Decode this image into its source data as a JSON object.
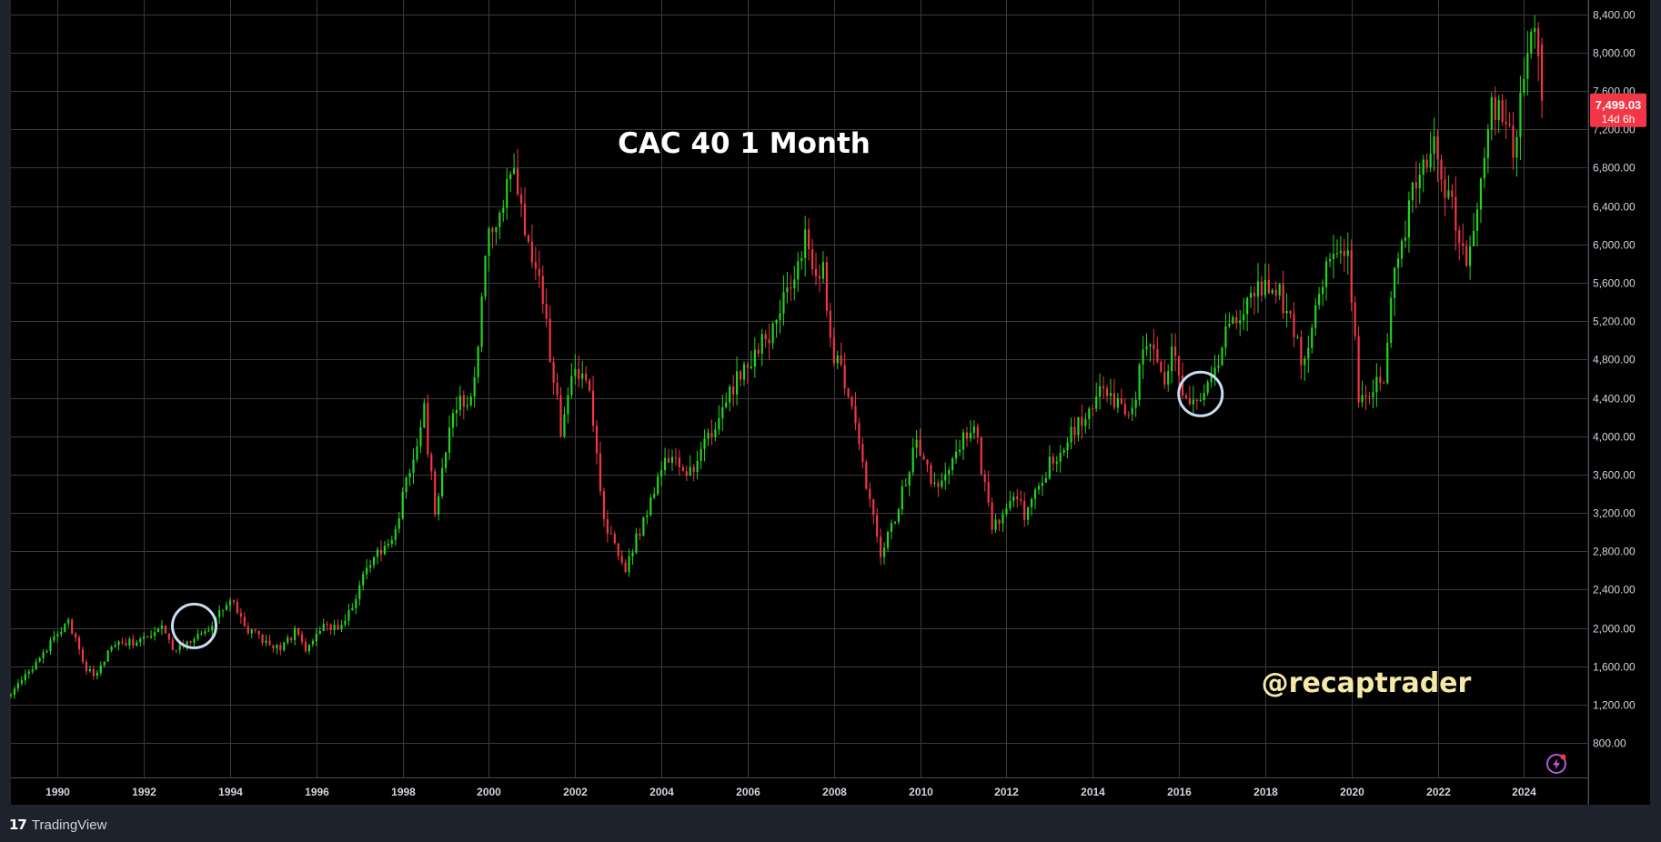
{
  "chart_data": {
    "type": "candlestick",
    "title": "CAC 40 1 Month",
    "annotation": "@recaptrader",
    "x_axis": {
      "type": "date",
      "xlim": [
        "1988-12-01",
        "2025-06-20"
      ],
      "tick_labels": [
        "1990",
        "1992",
        "1994",
        "1996",
        "1998",
        "2000",
        "2002",
        "2004",
        "2006",
        "2008",
        "2010",
        "2012",
        "2014",
        "2016",
        "2018",
        "2020",
        "2022",
        "2024"
      ]
    },
    "y_axis": {
      "ylim": [
        440,
        8550
      ],
      "position": "right",
      "tick_labels": [
        "800.00",
        "1,200.00",
        "1,600.00",
        "2,000.00",
        "2,400.00",
        "2,800.00",
        "3,200.00",
        "3,600.00",
        "4,000.00",
        "4,400.00",
        "4,800.00",
        "5,200.00",
        "5,600.00",
        "6,000.00",
        "6,400.00",
        "6,800.00",
        "7,200.00",
        "7,600.00",
        "8,000.00",
        "8,400.00"
      ]
    },
    "grid": true,
    "colors": {
      "background": "#000000",
      "up": "#22d61f",
      "down": "#f23645",
      "grid": "#3a3a3a",
      "axis_text": "#d1d4dc",
      "title": "#ffffff",
      "annotation": "#f5e9a6",
      "circle": "#c8dcf2",
      "last_price_bg": "#f23645"
    },
    "last_price": {
      "value": 7499.03,
      "label": "7,499.03",
      "countdown": "14d 6h"
    },
    "highlights": [
      {
        "date": "1993-03-01",
        "price": 2020
      },
      {
        "date": "2016-07-01",
        "price": 4440
      }
    ],
    "anchors": [
      [
        "1988-12",
        1300
      ],
      [
        "1989-07",
        1650
      ],
      [
        "1990-04",
        2090
      ],
      [
        "1990-09",
        1560
      ],
      [
        "1990-12",
        1520
      ],
      [
        "1991-04",
        1820
      ],
      [
        "1992-01",
        1870
      ],
      [
        "1992-06",
        2060
      ],
      [
        "1992-09",
        1730
      ],
      [
        "1993-03",
        1880
      ],
      [
        "1993-06",
        1950
      ],
      [
        "1994-01",
        2330
      ],
      [
        "1994-06",
        1980
      ],
      [
        "1995-03",
        1780
      ],
      [
        "1995-07",
        1960
      ],
      [
        "1995-10",
        1790
      ],
      [
        "1996-03",
        2020
      ],
      [
        "1996-07",
        1990
      ],
      [
        "1996-12",
        2320
      ],
      [
        "1997-05",
        2780
      ],
      [
        "1997-10",
        2900
      ],
      [
        "1998-07",
        4250
      ],
      [
        "1998-10",
        3200
      ],
      [
        "1999-03",
        4200
      ],
      [
        "1999-09",
        4550
      ],
      [
        "1999-12",
        5960
      ],
      [
        "2000-08",
        6800
      ],
      [
        "2000-12",
        5920
      ],
      [
        "2001-03",
        5600
      ],
      [
        "2001-09",
        4100
      ],
      [
        "2001-12",
        4630
      ],
      [
        "2002-05",
        4550
      ],
      [
        "2002-09",
        3150
      ],
      [
        "2003-03",
        2600
      ],
      [
        "2003-12",
        3560
      ],
      [
        "2004-03",
        3750
      ],
      [
        "2004-09",
        3640
      ],
      [
        "2005-03",
        4060
      ],
      [
        "2005-12",
        4710
      ],
      [
        "2006-05",
        5050
      ],
      [
        "2006-06",
        4900
      ],
      [
        "2006-12",
        5540
      ],
      [
        "2007-05",
        6090
      ],
      [
        "2007-08",
        5660
      ],
      [
        "2007-10",
        5700
      ],
      [
        "2008-01",
        4870
      ],
      [
        "2008-06",
        4420
      ],
      [
        "2008-10",
        3490
      ],
      [
        "2009-02",
        2800
      ],
      [
        "2009-06",
        3140
      ],
      [
        "2009-12",
        3940
      ],
      [
        "2010-05",
        3500
      ],
      [
        "2010-09",
        3720
      ],
      [
        "2011-04",
        4110
      ],
      [
        "2011-08",
        3260
      ],
      [
        "2011-09",
        2980
      ],
      [
        "2012-03",
        3420
      ],
      [
        "2012-06",
        3200
      ],
      [
        "2012-12",
        3640
      ],
      [
        "2013-05",
        3950
      ],
      [
        "2013-12",
        4300
      ],
      [
        "2014-05",
        4510
      ],
      [
        "2014-10",
        4230
      ],
      [
        "2014-12",
        4270
      ],
      [
        "2015-04",
        5040
      ],
      [
        "2015-09",
        4450
      ],
      [
        "2015-11",
        4960
      ],
      [
        "2016-02",
        4350
      ],
      [
        "2016-07",
        4440
      ],
      [
        "2016-12",
        4860
      ],
      [
        "2017-05",
        5280
      ],
      [
        "2017-10",
        5500
      ],
      [
        "2018-05",
        5520
      ],
      [
        "2018-12",
        4730
      ],
      [
        "2019-04",
        5580
      ],
      [
        "2019-12",
        6000
      ],
      [
        "2020-03",
        4400
      ],
      [
        "2020-10",
        4600
      ],
      [
        "2020-12",
        5550
      ],
      [
        "2021-06",
        6500
      ],
      [
        "2021-12",
        7150
      ],
      [
        "2022-03",
        6650
      ],
      [
        "2022-09",
        5760
      ],
      [
        "2022-12",
        6470
      ],
      [
        "2023-04",
        7490
      ],
      [
        "2023-09",
        7140
      ],
      [
        "2023-10",
        6880
      ],
      [
        "2023-12",
        7540
      ],
      [
        "2024-03",
        8200
      ],
      [
        "2024-05",
        7990
      ],
      [
        "2024-06",
        7499
      ]
    ]
  },
  "footer": {
    "brand": "TradingView",
    "brand_logo": "17"
  },
  "icons": {
    "alert": "lightning-icon"
  }
}
